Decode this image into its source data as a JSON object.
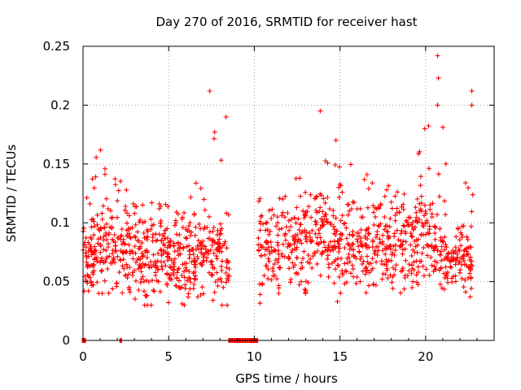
{
  "chart_data": {
    "type": "scatter",
    "title": "Day 270 of 2016, SRMTID for receiver hast",
    "xlabel": "GPS time / hours",
    "ylabel": "SRMTID / TECUs",
    "xlim": [
      0,
      24
    ],
    "ylim": [
      0,
      0.25
    ],
    "x_ticks": [
      0,
      5,
      10,
      15,
      20
    ],
    "x_tick_labels": [
      "0",
      "5",
      "10",
      "15",
      "20"
    ],
    "y_ticks": [
      0,
      0.05,
      0.1,
      0.15,
      0.2,
      0.25
    ],
    "y_tick_labels": [
      "0",
      "0.05",
      "0.1",
      "0.15",
      "0.2",
      "0.25"
    ],
    "grid": true,
    "marker": "plus",
    "color": "#ff0000",
    "series": [
      {
        "name": "SRMTID",
        "x_range": [
          0.0,
          22.75
        ],
        "data_gaps_hours": [
          [
            8.55,
            10.2
          ]
        ],
        "zero_value_x": [
          0.0,
          0.05,
          0.1,
          2.2,
          8.55,
          8.7,
          8.85,
          9.0,
          9.15,
          9.3,
          9.45,
          9.6,
          9.75,
          9.85,
          9.95,
          10.05,
          10.15
        ],
        "envelope": [
          {
            "x": 0.0,
            "low": 0.04,
            "high": 0.11,
            "typical": 0.065
          },
          {
            "x": 1.0,
            "low": 0.04,
            "high": 0.17,
            "typical": 0.08
          },
          {
            "x": 2.0,
            "low": 0.04,
            "high": 0.14,
            "typical": 0.075
          },
          {
            "x": 3.0,
            "low": 0.03,
            "high": 0.12,
            "typical": 0.07
          },
          {
            "x": 4.0,
            "low": 0.03,
            "high": 0.12,
            "typical": 0.07
          },
          {
            "x": 5.0,
            "low": 0.03,
            "high": 0.12,
            "typical": 0.07
          },
          {
            "x": 6.0,
            "low": 0.03,
            "high": 0.11,
            "typical": 0.065
          },
          {
            "x": 7.0,
            "low": 0.04,
            "high": 0.21,
            "typical": 0.075
          },
          {
            "x": 8.0,
            "low": 0.03,
            "high": 0.19,
            "typical": 0.07
          },
          {
            "x": 8.5,
            "low": 0.03,
            "high": 0.12,
            "typical": 0.065
          },
          {
            "x": 10.2,
            "low": 0.03,
            "high": 0.13,
            "typical": 0.07
          },
          {
            "x": 11.0,
            "low": 0.04,
            "high": 0.12,
            "typical": 0.075
          },
          {
            "x": 12.0,
            "low": 0.04,
            "high": 0.13,
            "typical": 0.08
          },
          {
            "x": 13.0,
            "low": 0.04,
            "high": 0.15,
            "typical": 0.085
          },
          {
            "x": 14.0,
            "low": 0.05,
            "high": 0.195,
            "typical": 0.09
          },
          {
            "x": 15.0,
            "low": 0.03,
            "high": 0.17,
            "typical": 0.08
          },
          {
            "x": 16.0,
            "low": 0.04,
            "high": 0.14,
            "typical": 0.08
          },
          {
            "x": 17.0,
            "low": 0.04,
            "high": 0.15,
            "typical": 0.08
          },
          {
            "x": 18.0,
            "low": 0.04,
            "high": 0.13,
            "typical": 0.08
          },
          {
            "x": 19.0,
            "low": 0.04,
            "high": 0.13,
            "typical": 0.08
          },
          {
            "x": 20.0,
            "low": 0.05,
            "high": 0.18,
            "typical": 0.09
          },
          {
            "x": 20.7,
            "low": 0.04,
            "high": 0.242,
            "typical": 0.07
          },
          {
            "x": 21.5,
            "low": 0.04,
            "high": 0.1,
            "typical": 0.065
          },
          {
            "x": 22.0,
            "low": 0.04,
            "high": 0.11,
            "typical": 0.07
          },
          {
            "x": 22.75,
            "low": 0.03,
            "high": 0.21,
            "typical": 0.06
          }
        ],
        "notable_points": [
          {
            "x": 7.4,
            "y": 0.212
          },
          {
            "x": 8.35,
            "y": 0.19
          },
          {
            "x": 13.85,
            "y": 0.195
          },
          {
            "x": 20.7,
            "y": 0.242
          },
          {
            "x": 20.75,
            "y": 0.223
          },
          {
            "x": 20.7,
            "y": 0.2
          },
          {
            "x": 22.7,
            "y": 0.212
          },
          {
            "x": 22.7,
            "y": 0.2
          },
          {
            "x": 19.95,
            "y": 0.18
          }
        ]
      }
    ]
  }
}
